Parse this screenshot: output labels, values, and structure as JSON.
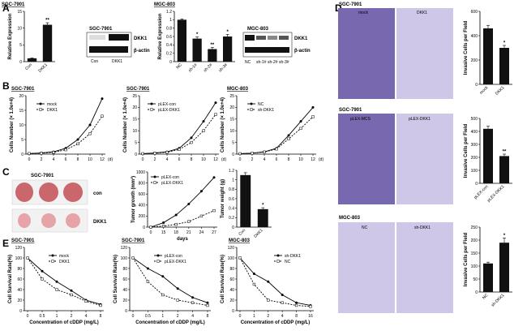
{
  "colors": {
    "black": "#000000",
    "bar": "#111111",
    "stainDark": "#3b2f74",
    "stainMid": "#7868b0",
    "stainLight": "#cfc7e8",
    "tumor": "#c9676d",
    "tumorLight": "#e6a3a8"
  },
  "panels": {
    "A": "A",
    "B": "B",
    "C": "C",
    "D": "D",
    "E": "E"
  },
  "blotA1": {
    "cell": "SGC-7901",
    "protein1": "DKK1",
    "protein2": "β-actin",
    "lanes": [
      "Con",
      "DKK1"
    ]
  },
  "blotA2": {
    "cell": "MGC-803",
    "protein1": "DKK1",
    "protein2": "β-actin",
    "lanes": [
      "NC",
      "sh-1#",
      "sh-2#",
      "sh-3#"
    ]
  },
  "tumorPhoto": {
    "cell": "SGC-7901",
    "row1": "con",
    "row2": "DKK1"
  },
  "migration": [
    {
      "cell": "SGC-7901",
      "left": "mock",
      "right": "DKK1"
    },
    {
      "cell": "SGC-7901",
      "left": "pLEX-MCS",
      "right": "pLEX-DKK1"
    },
    {
      "cell": "MGC-803",
      "left": "NC",
      "right": "sh-DKK1"
    }
  ],
  "chart_data": [
    {
      "id": "A1",
      "type": "bar",
      "title": "SGC-7901",
      "ylabel": "Relative Expression",
      "categories": [
        "Con",
        "DKK1"
      ],
      "values": [
        1,
        11
      ],
      "errors": [
        0.1,
        0.6
      ],
      "ylim": [
        0,
        15
      ],
      "yticks": [
        0,
        5,
        10,
        15
      ],
      "sig": [
        "",
        "**"
      ]
    },
    {
      "id": "A2",
      "type": "bar",
      "title": "MGC-803",
      "ylabel": "Relative Expression",
      "categories": [
        "NC",
        "sh-1#",
        "sh-2#",
        "sh-3#"
      ],
      "values": [
        1,
        0.55,
        0.3,
        0.6
      ],
      "errors": [
        0.02,
        0.04,
        0.04,
        0.05
      ],
      "ylim": [
        0,
        1.2
      ],
      "yticks": [
        0.0,
        0.2,
        0.4,
        0.6,
        0.8,
        1.0,
        1.2
      ],
      "sig": [
        "",
        "*",
        "**",
        "*"
      ]
    },
    {
      "id": "B1",
      "type": "line",
      "title": "SGC-7901",
      "ylabel": "Cells Number (× 1.0e+4)",
      "xlabel": "(d)",
      "x": [
        0,
        2,
        4,
        6,
        8,
        10,
        12
      ],
      "xticks": [
        0,
        2,
        4,
        6,
        8,
        10,
        12
      ],
      "ylim": [
        0,
        20
      ],
      "yticks": [
        0,
        5,
        10,
        15,
        20
      ],
      "series": [
        {
          "name": "mock",
          "values": [
            0.2,
            0.4,
            0.8,
            2,
            5,
            10,
            19
          ]
        },
        {
          "name": "DKK1",
          "values": [
            0.2,
            0.3,
            0.6,
            1.5,
            3.5,
            7,
            13
          ]
        }
      ]
    },
    {
      "id": "B2",
      "type": "line",
      "title": "SGC-7901",
      "ylabel": "Cells Number (× 1.0e+4)",
      "xlabel": "(d)",
      "x": [
        0,
        2,
        4,
        6,
        8,
        10,
        12
      ],
      "xticks": [
        0,
        2,
        4,
        6,
        8,
        10,
        12
      ],
      "ylim": [
        0,
        25
      ],
      "yticks": [
        0,
        5,
        10,
        15,
        20,
        25
      ],
      "series": [
        {
          "name": "pLEX-con",
          "values": [
            0.2,
            0.5,
            1,
            2.5,
            7,
            14,
            22
          ]
        },
        {
          "name": "pLEX-DKK1",
          "values": [
            0.2,
            0.4,
            0.8,
            2,
            5,
            10,
            17
          ]
        }
      ]
    },
    {
      "id": "B3",
      "type": "line",
      "title": "MGC-803",
      "ylabel": "Cells Number (× 1.0e+4)",
      "xlabel": "(d)",
      "x": [
        0,
        2,
        4,
        6,
        8,
        10,
        12
      ],
      "xticks": [
        0,
        2,
        4,
        6,
        8,
        10,
        12
      ],
      "ylim": [
        0,
        25
      ],
      "yticks": [
        0,
        5,
        10,
        15,
        20,
        25
      ],
      "series": [
        {
          "name": "NC",
          "values": [
            0.2,
            0.4,
            1,
            2.5,
            8,
            14,
            20
          ]
        },
        {
          "name": "sh-DKK1",
          "values": [
            0.2,
            0.4,
            0.9,
            2.2,
            6.5,
            11,
            16
          ]
        }
      ]
    },
    {
      "id": "C1",
      "type": "line",
      "title": "",
      "ylabel": "Tumor growth (mm³)",
      "xlabel": "days",
      "x": [
        0,
        15,
        18,
        21,
        24,
        27
      ],
      "xticks": [
        0,
        15,
        18,
        21,
        24,
        27
      ],
      "ylim": [
        0,
        1000
      ],
      "yticks": [
        0,
        200,
        400,
        600,
        800,
        1000
      ],
      "series": [
        {
          "name": "pLEX-con",
          "values": [
            0,
            80,
            220,
            420,
            650,
            900
          ]
        },
        {
          "name": "pLEX-DKK1",
          "values": [
            0,
            20,
            50,
            100,
            200,
            300
          ]
        }
      ]
    },
    {
      "id": "C2",
      "type": "bar",
      "title": "",
      "ylabel": "Tumor weight (g)",
      "categories": [
        "Con",
        "DKK1"
      ],
      "values": [
        1.1,
        0.38
      ],
      "errors": [
        0.05,
        0.03
      ],
      "ylim": [
        0,
        1.2
      ],
      "yticks": [
        0.0,
        0.2,
        0.4,
        0.6,
        0.8,
        1.0,
        1.2
      ],
      "sig": [
        "",
        "*"
      ]
    },
    {
      "id": "D1",
      "type": "bar",
      "title": "",
      "ylabel": "Invasive Cells per Field",
      "categories": [
        "mock",
        "DKK1"
      ],
      "values": [
        460,
        300
      ],
      "errors": [
        25,
        20
      ],
      "ylim": [
        0,
        600
      ],
      "yticks": [
        0,
        200,
        400,
        600
      ],
      "sig": [
        "",
        "*"
      ]
    },
    {
      "id": "D2",
      "type": "bar",
      "title": "",
      "ylabel": "Invasive Cells per Field",
      "categories": [
        "pLEX-con",
        "pLEX-DKK1"
      ],
      "values": [
        420,
        210
      ],
      "errors": [
        20,
        15
      ],
      "ylim": [
        0,
        500
      ],
      "yticks": [
        0,
        100,
        200,
        300,
        400,
        500
      ],
      "sig": [
        "",
        "**"
      ]
    },
    {
      "id": "D3",
      "type": "bar",
      "title": "",
      "ylabel": "Invasive Cells per Field",
      "categories": [
        "NC",
        "sh-DKK1"
      ],
      "values": [
        110,
        190
      ],
      "errors": [
        5,
        18
      ],
      "ylim": [
        0,
        250
      ],
      "yticks": [
        0,
        50,
        100,
        150,
        200,
        250
      ],
      "sig": [
        "",
        "*"
      ]
    },
    {
      "id": "E1",
      "type": "line",
      "title": "SGC-7901",
      "ylabel": "Cell Survival Rate(%)",
      "xlabel": "Concentration of cDDP (mg/L)",
      "x": [
        0,
        0.5,
        1,
        2,
        4,
        8
      ],
      "xticks": [
        "0",
        "0.5",
        "1",
        "2",
        "4",
        "8"
      ],
      "ylim": [
        0,
        120
      ],
      "yticks": [
        0,
        20,
        40,
        60,
        80,
        100,
        120
      ],
      "series": [
        {
          "name": "mock",
          "values": [
            100,
            75,
            55,
            38,
            20,
            12
          ]
        },
        {
          "name": "DKK1",
          "values": [
            100,
            60,
            40,
            30,
            18,
            10
          ]
        }
      ]
    },
    {
      "id": "E2",
      "type": "line",
      "title": "SGC-7901",
      "ylabel": "Cell Survival Rate(%)",
      "xlabel": "Concentration of cDDP (mg/L)",
      "x": [
        0,
        0.5,
        1,
        2,
        4,
        8
      ],
      "xticks": [
        "0",
        "0.5",
        "1",
        "2",
        "4",
        "8"
      ],
      "ylim": [
        0,
        120
      ],
      "yticks": [
        0,
        20,
        40,
        60,
        80,
        100,
        120
      ],
      "series": [
        {
          "name": "pLEX-con",
          "values": [
            100,
            80,
            65,
            42,
            25,
            15
          ]
        },
        {
          "name": "pLEX-DKK1",
          "values": [
            100,
            55,
            30,
            20,
            15,
            10
          ]
        }
      ]
    },
    {
      "id": "E3",
      "type": "line",
      "title": "MGC-803",
      "ylabel": "Cell Survival Rate(%)",
      "xlabel": "Concentration of cDDP (mg/L)",
      "x": [
        0,
        1,
        2,
        4,
        8,
        16
      ],
      "xticks": [
        "0",
        "1",
        "2",
        "4",
        "8",
        "16"
      ],
      "ylim": [
        0,
        120
      ],
      "yticks": [
        0,
        20,
        40,
        60,
        80,
        100,
        120
      ],
      "series": [
        {
          "name": "sh-DKK1",
          "values": [
            100,
            70,
            55,
            30,
            15,
            10
          ]
        },
        {
          "name": "NC",
          "values": [
            100,
            50,
            20,
            15,
            10,
            8
          ]
        }
      ]
    }
  ]
}
